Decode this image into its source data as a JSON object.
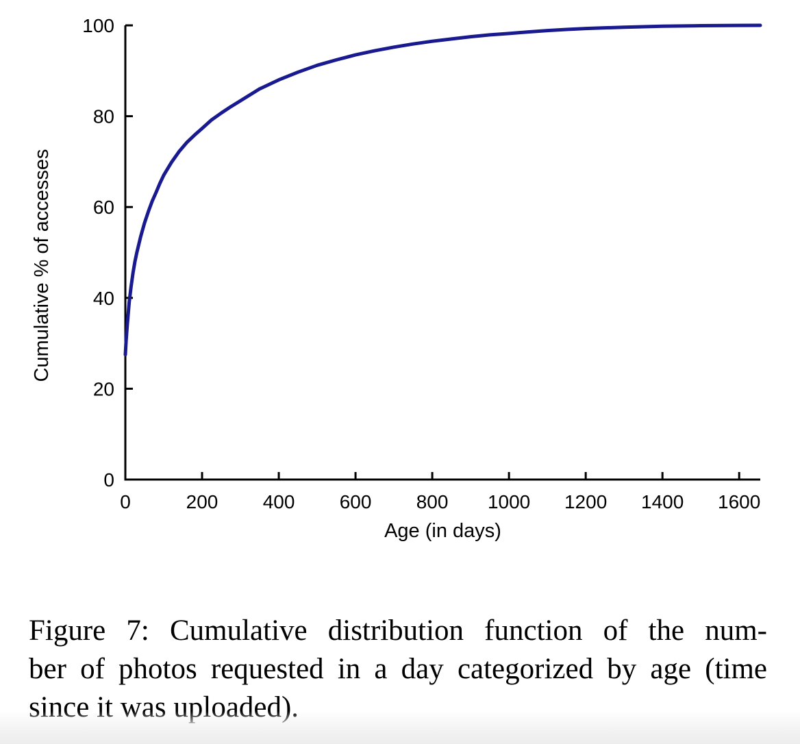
{
  "figure": {
    "caption_lines": [
      "Figure 7: Cumulative distribution function of the num-",
      "ber of photos requested in a day categorized by age (time",
      "since it was uploaded)."
    ]
  },
  "chart_data": {
    "type": "line",
    "title": "",
    "xlabel": "Age (in days)",
    "ylabel": "Cumulative % of accesses",
    "xlim": [
      0,
      1655
    ],
    "ylim": [
      0,
      100
    ],
    "x_ticks": [
      0,
      200,
      400,
      600,
      800,
      1000,
      1200,
      1400,
      1600
    ],
    "y_ticks": [
      0,
      20,
      40,
      60,
      80,
      100
    ],
    "grid": false,
    "legend": "none",
    "colors": {
      "curve": "#1a1a90",
      "axis": "#000000"
    },
    "series": [
      {
        "name": "cdf-photo-requests-by-age",
        "color": "#1a1a90",
        "points": [
          [
            0,
            27.5
          ],
          [
            2,
            30.5
          ],
          [
            5,
            34
          ],
          [
            10,
            39
          ],
          [
            15,
            42.5
          ],
          [
            20,
            45.5
          ],
          [
            25,
            48
          ],
          [
            30,
            50
          ],
          [
            40,
            53.5
          ],
          [
            50,
            56.5
          ],
          [
            60,
            59
          ],
          [
            70,
            61.3
          ],
          [
            80,
            63.2
          ],
          [
            90,
            65.2
          ],
          [
            100,
            67
          ],
          [
            120,
            69.8
          ],
          [
            140,
            72.2
          ],
          [
            160,
            74.2
          ],
          [
            180,
            75.8
          ],
          [
            200,
            77.3
          ],
          [
            225,
            79.2
          ],
          [
            250,
            80.7
          ],
          [
            275,
            82.1
          ],
          [
            300,
            83.4
          ],
          [
            350,
            86
          ],
          [
            400,
            88
          ],
          [
            450,
            89.7
          ],
          [
            500,
            91.2
          ],
          [
            550,
            92.4
          ],
          [
            600,
            93.5
          ],
          [
            650,
            94.4
          ],
          [
            700,
            95.2
          ],
          [
            750,
            95.9
          ],
          [
            800,
            96.5
          ],
          [
            850,
            97.0
          ],
          [
            900,
            97.5
          ],
          [
            950,
            97.9
          ],
          [
            1000,
            98.2
          ],
          [
            1050,
            98.55
          ],
          [
            1100,
            98.85
          ],
          [
            1150,
            99.1
          ],
          [
            1200,
            99.3
          ],
          [
            1300,
            99.6
          ],
          [
            1400,
            99.8
          ],
          [
            1500,
            99.92
          ],
          [
            1600,
            99.98
          ],
          [
            1655,
            100
          ]
        ]
      }
    ]
  }
}
